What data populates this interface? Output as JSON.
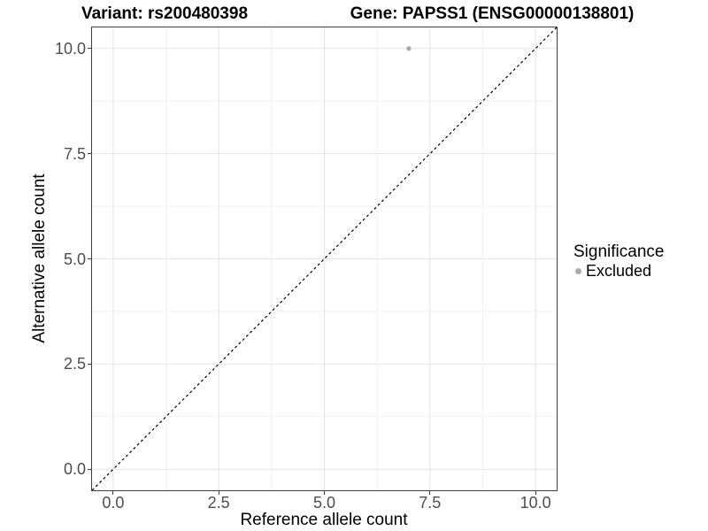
{
  "figure": {
    "title_left": "Variant: rs200480398",
    "title_right": "Gene: PAPSS1 (ENSG00000138801)"
  },
  "chart_data": {
    "type": "scatter",
    "title": "Variant: rs200480398 — Gene: PAPSS1 (ENSG00000138801)",
    "xlabel": "Reference allele count",
    "ylabel": "Alternative allele count",
    "xlim": [
      -0.5,
      10.5
    ],
    "ylim": [
      -0.5,
      10.5
    ],
    "x_major_ticks": [
      0,
      2.5,
      5,
      7.5,
      10
    ],
    "x_tick_labels": [
      "0.0",
      "2.5",
      "5.0",
      "7.5",
      "10.0"
    ],
    "y_major_ticks": [
      0,
      2.5,
      5,
      7.5,
      10
    ],
    "y_tick_labels": [
      "0.0",
      "2.5",
      "5.0",
      "7.5",
      "10.0"
    ],
    "minor_ticks": [
      1.25,
      3.75,
      6.25,
      8.75
    ],
    "grid": true,
    "reference_line": {
      "slope": 1,
      "intercept": 0,
      "style": "dashed",
      "color": "#000000"
    },
    "series": [
      {
        "name": "Excluded",
        "color": "#ababab",
        "points": [
          {
            "x": 7,
            "y": 10
          }
        ]
      }
    ],
    "legend": {
      "title": "Significance",
      "position": "right",
      "items": [
        {
          "label": "Excluded",
          "color": "#ababab"
        }
      ]
    },
    "style": {
      "panel_border": "#404040",
      "grid_major": "#e3e3e3",
      "grid_minor": "#f1f1f1",
      "tick_text": "#4d4d4d",
      "background": "#ffffff"
    }
  }
}
